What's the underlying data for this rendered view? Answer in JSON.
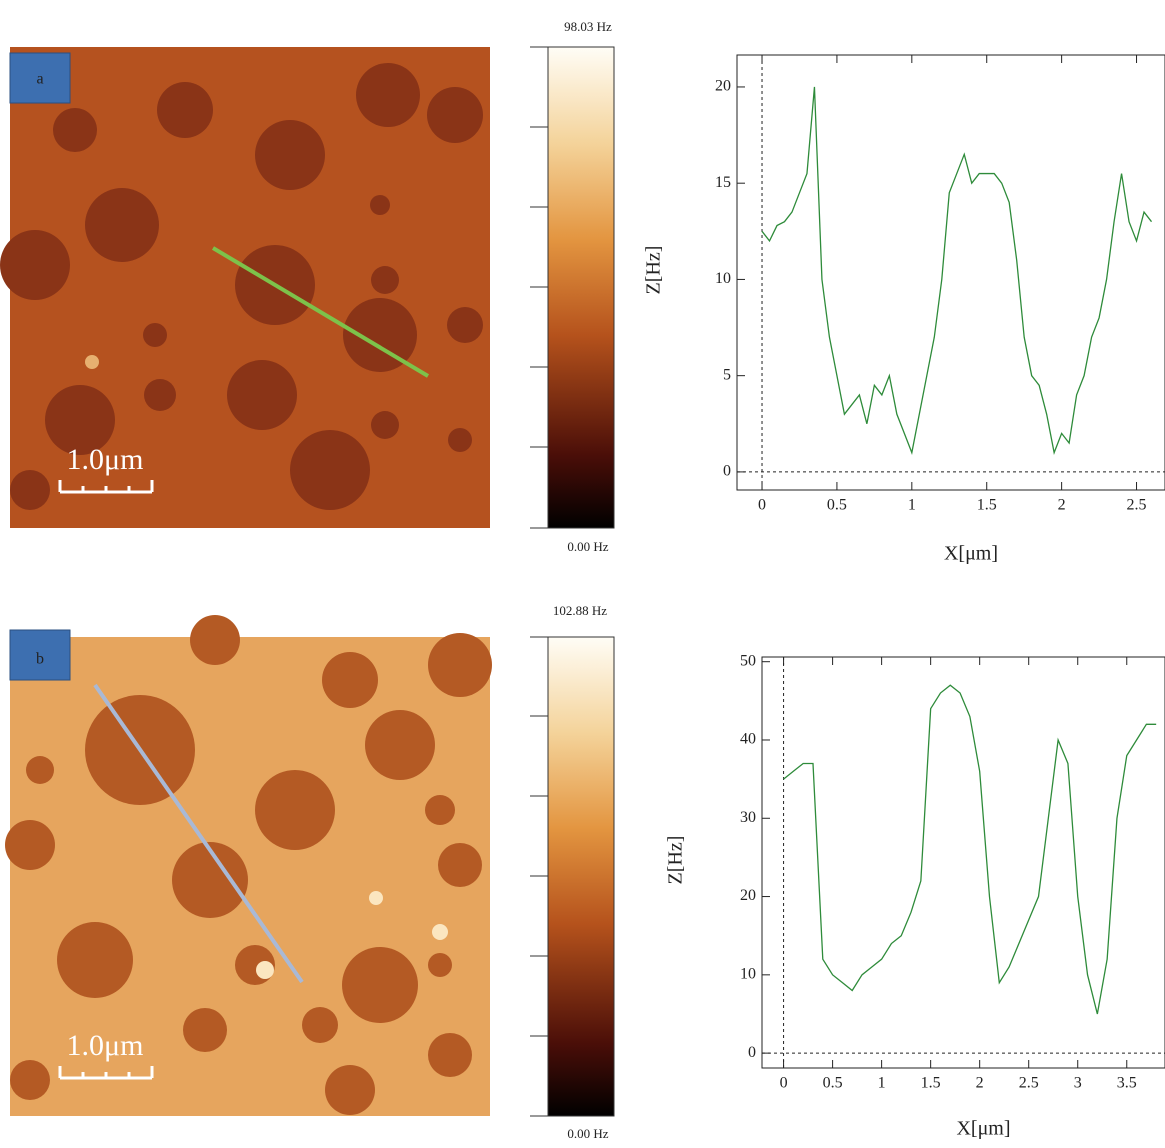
{
  "panels": [
    {
      "label": "a",
      "colorbar_max": "98.03 Hz",
      "colorbar_min": "0.00 Hz",
      "scale_bar": "1.0μm"
    },
    {
      "label": "b",
      "colorbar_max": "102.88 Hz",
      "colorbar_min": "0.00 Hz",
      "scale_bar": "1.0μm"
    }
  ],
  "chart_data": [
    {
      "type": "line",
      "x_label": "X[μm]",
      "y_label": "Z[Hz]",
      "x": [
        0,
        0.05,
        0.1,
        0.15,
        0.2,
        0.25,
        0.3,
        0.35,
        0.4,
        0.45,
        0.5,
        0.55,
        0.6,
        0.65,
        0.7,
        0.75,
        0.8,
        0.85,
        0.9,
        0.95,
        1.0,
        1.05,
        1.1,
        1.15,
        1.2,
        1.25,
        1.3,
        1.35,
        1.4,
        1.45,
        1.5,
        1.55,
        1.6,
        1.65,
        1.7,
        1.75,
        1.8,
        1.85,
        1.9,
        1.95,
        2.0,
        2.05,
        2.1,
        2.15,
        2.2,
        2.25,
        2.3,
        2.35,
        2.4,
        2.45,
        2.5,
        2.55,
        2.6
      ],
      "series": [
        {
          "color": "#2e8b3a",
          "values": [
            12.5,
            12,
            12.8,
            13,
            13.5,
            14.5,
            15.5,
            20,
            10,
            7,
            5,
            3,
            3.5,
            4,
            2.5,
            4.5,
            4,
            5,
            3,
            2,
            1,
            3,
            5,
            7,
            10,
            14.5,
            15.5,
            16.5,
            15,
            15.5,
            15.5,
            15.5,
            15,
            14,
            11,
            7,
            5,
            4.5,
            3,
            1,
            2,
            1.5,
            4,
            5,
            7,
            8,
            10,
            13,
            15.5,
            13,
            12,
            13.5,
            13
          ]
        }
      ],
      "xlim": [
        -0.167,
        2.69
      ],
      "ylim": [
        -0.94,
        21.66
      ],
      "xticks": [
        0,
        0.5,
        1,
        1.5,
        2,
        2.5
      ],
      "yticks": [
        0,
        5,
        10,
        15,
        20
      ]
    },
    {
      "type": "line",
      "x_label": "X[μm]",
      "y_label": "Z[Hz]",
      "x": [
        0,
        0.1,
        0.2,
        0.3,
        0.4,
        0.5,
        0.6,
        0.7,
        0.8,
        0.9,
        1.0,
        1.1,
        1.2,
        1.3,
        1.4,
        1.5,
        1.6,
        1.7,
        1.8,
        1.9,
        2.0,
        2.1,
        2.2,
        2.3,
        2.4,
        2.5,
        2.6,
        2.7,
        2.8,
        2.9,
        3.0,
        3.1,
        3.2,
        3.3,
        3.4,
        3.5,
        3.6,
        3.7,
        3.8
      ],
      "series": [
        {
          "color": "#2e8b3a",
          "values": [
            35,
            36,
            37,
            37,
            12,
            10,
            9,
            8,
            10,
            11,
            12,
            14,
            15,
            18,
            22,
            44,
            46,
            47,
            46,
            43,
            36,
            20,
            9,
            11,
            14,
            17,
            20,
            30,
            40,
            37,
            20,
            10,
            5,
            12,
            30,
            38,
            40,
            42,
            42
          ]
        }
      ],
      "xlim": [
        -0.22,
        3.89
      ],
      "ylim": [
        -1.9,
        50.6
      ],
      "xticks": [
        0,
        0.5,
        1,
        1.5,
        2,
        2.5,
        3,
        3.5
      ],
      "yticks": [
        0,
        10,
        20,
        30,
        40,
        50
      ]
    }
  ]
}
